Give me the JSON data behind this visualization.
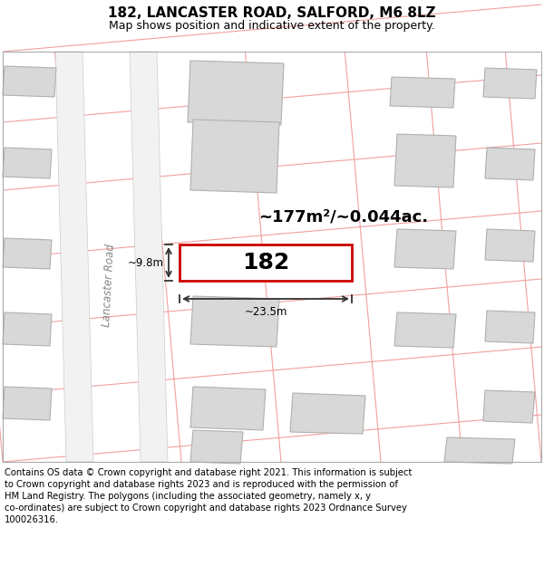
{
  "title_line1": "182, LANCASTER ROAD, SALFORD, M6 8LZ",
  "title_line2": "Map shows position and indicative extent of the property.",
  "footer_lines": [
    "Contains OS data © Crown copyright and database right 2021. This information is subject",
    "to Crown copyright and database rights 2023 and is reproduced with the permission of",
    "HM Land Registry. The polygons (including the associated geometry, namely x, y",
    "co-ordinates) are subject to Crown copyright and database rights 2023 Ordnance Survey",
    "100026316."
  ],
  "map_bg": "#ffffff",
  "page_bg": "#ffffff",
  "property_fill": "#ffffff",
  "property_edge": "#cc0000",
  "building_fill": "#d8d8d8",
  "building_edge": "#b0b0b0",
  "grid_color": "#f0a0a0",
  "road_fill": "#f5f5f5",
  "road_edge": "#cccccc",
  "road_label": "Lancaster Road",
  "property_label": "182",
  "area_label": "~177m²/~0.044ac.",
  "dim_width": "~23.5m",
  "dim_height": "~9.8m"
}
